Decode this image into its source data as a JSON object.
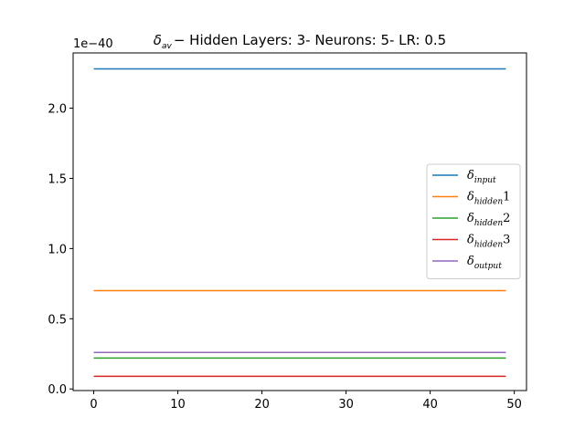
{
  "chart_data": {
    "type": "line",
    "title": {
      "symbol": "δ",
      "symbol_sub": "av",
      "text": "− Hidden Layers: 3- Neurons: 5- LR: 0.5"
    },
    "xlabel": "",
    "ylabel": "",
    "y_offset_label": "1e−40",
    "xlim": [
      -2.45,
      51.45
    ],
    "ylim": [
      -0.0114,
      2.3934
    ],
    "xticks": [
      0,
      10,
      20,
      30,
      40,
      50
    ],
    "xtick_labels": [
      "0",
      "10",
      "20",
      "30",
      "40",
      "50"
    ],
    "yticks": [
      0.0,
      0.5,
      1.0,
      1.5,
      2.0
    ],
    "ytick_labels": [
      "0.0",
      "0.5",
      "1.0",
      "1.5",
      "2.0"
    ],
    "x_range": [
      0,
      49
    ],
    "grid": false,
    "legend_position": "center-right",
    "series": [
      {
        "key": "input",
        "name": {
          "base": "δ",
          "sub": "input",
          "suffix": ""
        },
        "color": "#1f77b4",
        "value": 2.28
      },
      {
        "key": "hidden1",
        "name": {
          "base": "δ",
          "sub": "hidden",
          "suffix": "1"
        },
        "color": "#ff7f0e",
        "value": 0.7
      },
      {
        "key": "hidden2",
        "name": {
          "base": "δ",
          "sub": "hidden",
          "suffix": "2"
        },
        "color": "#2ca02c",
        "value": 0.22
      },
      {
        "key": "hidden3",
        "name": {
          "base": "δ",
          "sub": "hidden",
          "suffix": "3"
        },
        "color": "#d62728",
        "value": 0.09
      },
      {
        "key": "output",
        "name": {
          "base": "δ",
          "sub": "output",
          "suffix": ""
        },
        "color": "#9467bd",
        "value": 0.26
      }
    ]
  }
}
